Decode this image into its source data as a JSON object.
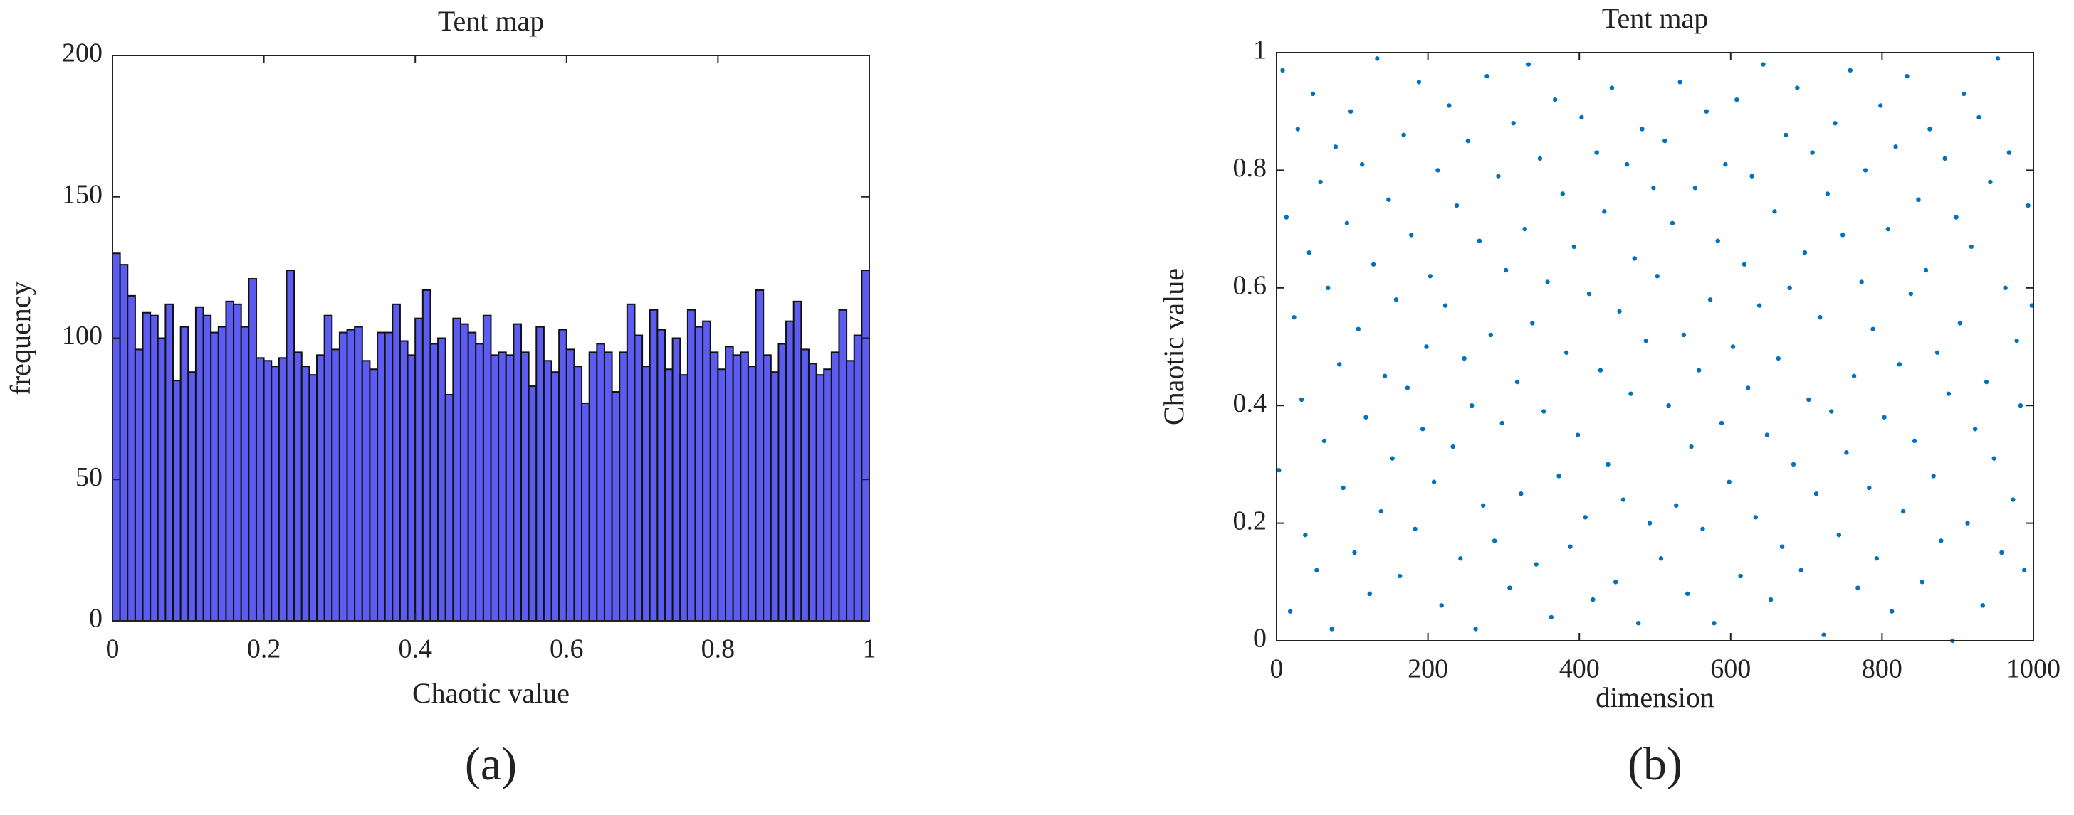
{
  "chart_data": [
    {
      "type": "histogram",
      "title": "Tent map",
      "xlabel": "Chaotic value",
      "ylabel": "frequency",
      "panel_label": "(a)",
      "color": "#5c5cf0",
      "bins": [
        0,
        0.01,
        0.02,
        0.03,
        0.04,
        0.05,
        0.06,
        0.07,
        0.08,
        0.09,
        0.1,
        0.11,
        0.12,
        0.13,
        0.14,
        0.15,
        0.16,
        0.17,
        0.18,
        0.19,
        0.2,
        0.21,
        0.22,
        0.23,
        0.24,
        0.25,
        0.26,
        0.27,
        0.28,
        0.29,
        0.3,
        0.31,
        0.32,
        0.33,
        0.34,
        0.35,
        0.36,
        0.37,
        0.38,
        0.39,
        0.4,
        0.41,
        0.42,
        0.43,
        0.44,
        0.45,
        0.46,
        0.47,
        0.48,
        0.49,
        0.5,
        0.51,
        0.52,
        0.53,
        0.54,
        0.55,
        0.56,
        0.57,
        0.58,
        0.59,
        0.6,
        0.61,
        0.62,
        0.63,
        0.64,
        0.65,
        0.66,
        0.67,
        0.68,
        0.69,
        0.7,
        0.71,
        0.72,
        0.73,
        0.74,
        0.75,
        0.76,
        0.77,
        0.78,
        0.79,
        0.8,
        0.81,
        0.82,
        0.83,
        0.84,
        0.85,
        0.86,
        0.87,
        0.88,
        0.89,
        0.9,
        0.91,
        0.92,
        0.93,
        0.94,
        0.95,
        0.96,
        0.97,
        0.98,
        0.99,
        1
      ],
      "values": [
        130,
        126,
        115,
        96,
        109,
        108,
        100,
        112,
        85,
        104,
        88,
        111,
        108,
        102,
        104,
        113,
        112,
        104,
        121,
        93,
        92,
        90,
        93,
        124,
        95,
        90,
        87,
        94,
        108,
        96,
        102,
        103,
        104,
        92,
        89,
        102,
        102,
        112,
        99,
        94,
        107,
        117,
        98,
        100,
        80,
        107,
        105,
        102,
        98,
        108,
        94,
        95,
        94,
        105,
        95,
        83,
        104,
        92,
        88,
        103,
        96,
        90,
        77,
        95,
        98,
        95,
        81,
        95,
        112,
        101,
        90,
        110,
        103,
        89,
        100,
        87,
        110,
        104,
        106,
        95,
        89,
        97,
        94,
        95,
        90,
        117,
        94,
        88,
        98,
        106,
        113,
        96,
        91,
        87,
        89,
        95,
        110,
        92,
        101,
        124
      ],
      "xlim": [
        0,
        1
      ],
      "xticks": [
        0,
        0.2,
        0.4,
        0.6,
        0.8,
        1
      ],
      "ylim": [
        0,
        200
      ],
      "yticks": [
        0,
        50,
        100,
        150,
        200
      ]
    },
    {
      "type": "scatter",
      "title": "Tent map",
      "xlabel": "dimension",
      "ylabel": "Chaotic value",
      "panel_label": "(b)",
      "color": "#0072bd",
      "x": [
        3,
        8,
        13,
        18,
        23,
        28,
        33,
        38,
        43,
        48,
        53,
        58,
        63,
        68,
        73,
        78,
        83,
        88,
        93,
        98,
        103,
        108,
        113,
        118,
        123,
        128,
        133,
        138,
        143,
        148,
        153,
        158,
        163,
        168,
        173,
        178,
        183,
        188,
        193,
        198,
        203,
        208,
        213,
        218,
        223,
        228,
        233,
        238,
        243,
        248,
        253,
        258,
        263,
        268,
        273,
        278,
        283,
        288,
        293,
        298,
        303,
        308,
        313,
        318,
        323,
        328,
        333,
        338,
        343,
        348,
        353,
        358,
        363,
        368,
        373,
        378,
        383,
        388,
        393,
        398,
        403,
        408,
        413,
        418,
        423,
        428,
        433,
        438,
        443,
        448,
        453,
        458,
        463,
        468,
        473,
        478,
        483,
        488,
        493,
        498,
        503,
        508,
        513,
        518,
        523,
        528,
        533,
        538,
        543,
        548,
        553,
        558,
        563,
        568,
        573,
        578,
        583,
        588,
        593,
        598,
        603,
        608,
        613,
        618,
        623,
        628,
        633,
        638,
        643,
        648,
        653,
        658,
        663,
        668,
        673,
        678,
        683,
        688,
        693,
        698,
        703,
        708,
        713,
        718,
        723,
        728,
        733,
        738,
        743,
        748,
        753,
        758,
        763,
        768,
        773,
        778,
        783,
        788,
        793,
        798,
        803,
        808,
        813,
        818,
        823,
        828,
        833,
        838,
        843,
        848,
        853,
        858,
        863,
        868,
        873,
        878,
        883,
        888,
        893,
        898,
        903,
        908,
        913,
        918,
        923,
        928,
        933,
        938,
        943,
        948,
        953,
        958,
        963,
        968,
        973,
        978,
        983,
        988,
        993,
        998
      ],
      "values": [
        0.29,
        0.97,
        0.72,
        0.05,
        0.55,
        0.87,
        0.41,
        0.18,
        0.66,
        0.93,
        0.12,
        0.78,
        0.34,
        0.6,
        0.02,
        0.84,
        0.47,
        0.26,
        0.71,
        0.9,
        0.15,
        0.53,
        0.81,
        0.38,
        0.08,
        0.64,
        0.99,
        0.22,
        0.45,
        0.75,
        0.31,
        0.58,
        0.11,
        0.86,
        0.43,
        0.69,
        0.19,
        0.95,
        0.36,
        0.5,
        0.62,
        0.27,
        0.8,
        0.06,
        0.57,
        0.91,
        0.33,
        0.74,
        0.14,
        0.48,
        0.85,
        0.4,
        0.02,
        0.68,
        0.23,
        0.96,
        0.52,
        0.17,
        0.79,
        0.37,
        0.63,
        0.09,
        0.88,
        0.44,
        0.25,
        0.7,
        0.98,
        0.54,
        0.13,
        0.82,
        0.39,
        0.61,
        0.04,
        0.92,
        0.28,
        0.76,
        0.49,
        0.16,
        0.67,
        0.35,
        0.89,
        0.21,
        0.59,
        0.07,
        0.83,
        0.46,
        0.73,
        0.3,
        0.94,
        0.1,
        0.56,
        0.24,
        0.81,
        0.42,
        0.65,
        0.03,
        0.87,
        0.51,
        0.2,
        0.77,
        0.62,
        0.14,
        0.85,
        0.4,
        0.71,
        0.23,
        0.95,
        0.52,
        0.08,
        0.33,
        0.77,
        0.46,
        0.19,
        0.9,
        0.58,
        0.03,
        0.68,
        0.37,
        0.81,
        0.27,
        0.5,
        0.92,
        0.11,
        0.64,
        0.43,
        0.79,
        0.21,
        0.57,
        0.98,
        0.35,
        0.07,
        0.73,
        0.48,
        0.16,
        0.86,
        0.6,
        0.3,
        0.94,
        0.12,
        0.66,
        0.41,
        0.83,
        0.25,
        0.55,
        0.01,
        0.76,
        0.39,
        0.88,
        0.18,
        0.69,
        0.32,
        0.97,
        0.45,
        0.09,
        0.61,
        0.8,
        0.26,
        0.53,
        0.14,
        0.91,
        0.38,
        0.7,
        0.05,
        0.84,
        0.47,
        0.22,
        0.96,
        0.59,
        0.34,
        0.75,
        0.1,
        0.63,
        0.87,
        0.28,
        0.49,
        0.17,
        0.82,
        0.42,
        0,
        0.72,
        0.54,
        0.93,
        0.2,
        0.67,
        0.36,
        0.89,
        0.06,
        0.44,
        0.78,
        0.31,
        0.99,
        0.15,
        0.6,
        0.83,
        0.24,
        0.51,
        0.4,
        0.12,
        0.74,
        0.57
      ],
      "xlim": [
        0,
        1000
      ],
      "xticks": [
        0,
        200,
        400,
        600,
        800,
        1000
      ],
      "ylim": [
        0,
        1
      ],
      "yticks": [
        0,
        0.2,
        0.4,
        0.6,
        0.8,
        1
      ]
    }
  ]
}
